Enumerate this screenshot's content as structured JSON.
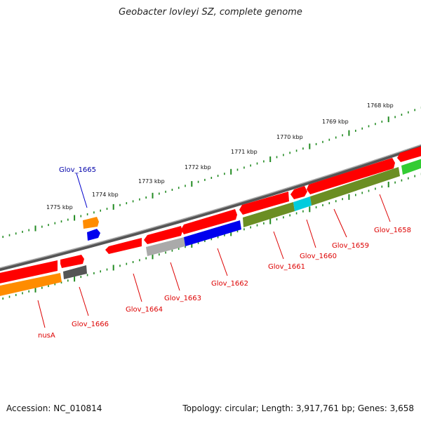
{
  "title": "Geobacter lovleyi SZ, complete genome",
  "footer": {
    "accession": "Accession: NC_010814",
    "topology": "Topology: circular; Length: 3,917,761 bp; Genes: 3,658"
  },
  "colors": {
    "red": "#ff0000",
    "orange": "#ff8c00",
    "blue": "#0000ee",
    "grey": "#aaaaaa",
    "darkgrey": "#555555",
    "olive": "#6b8e23",
    "cyan": "#00ccdd",
    "green": "#33cc33",
    "backbone": "#888888",
    "tick": "#228b22",
    "label_red": "#dd0000",
    "label_blue": "#0000aa"
  },
  "scale_labels": [
    "1775 kbp",
    "1774 kbp",
    "1773 kbp",
    "1772 kbp",
    "1771 kbp",
    "1770 kbp",
    "1769 kbp",
    "1768 kbp"
  ],
  "gene_labels": [
    {
      "text": "Glov_1665",
      "color": "blue"
    },
    {
      "text": "nusA",
      "color": "label_red"
    },
    {
      "text": "Glov_1666",
      "color": "label_red"
    },
    {
      "text": "Glov_1664",
      "color": "label_red"
    },
    {
      "text": "Glov_1663",
      "color": "label_red"
    },
    {
      "text": "Glov_1662",
      "color": "label_red"
    },
    {
      "text": "Glov_1661",
      "color": "label_red"
    },
    {
      "text": "Glov_1660",
      "color": "label_red"
    },
    {
      "text": "Glov_1659",
      "color": "label_red"
    },
    {
      "text": "Glov_1658",
      "color": "label_red"
    }
  ]
}
